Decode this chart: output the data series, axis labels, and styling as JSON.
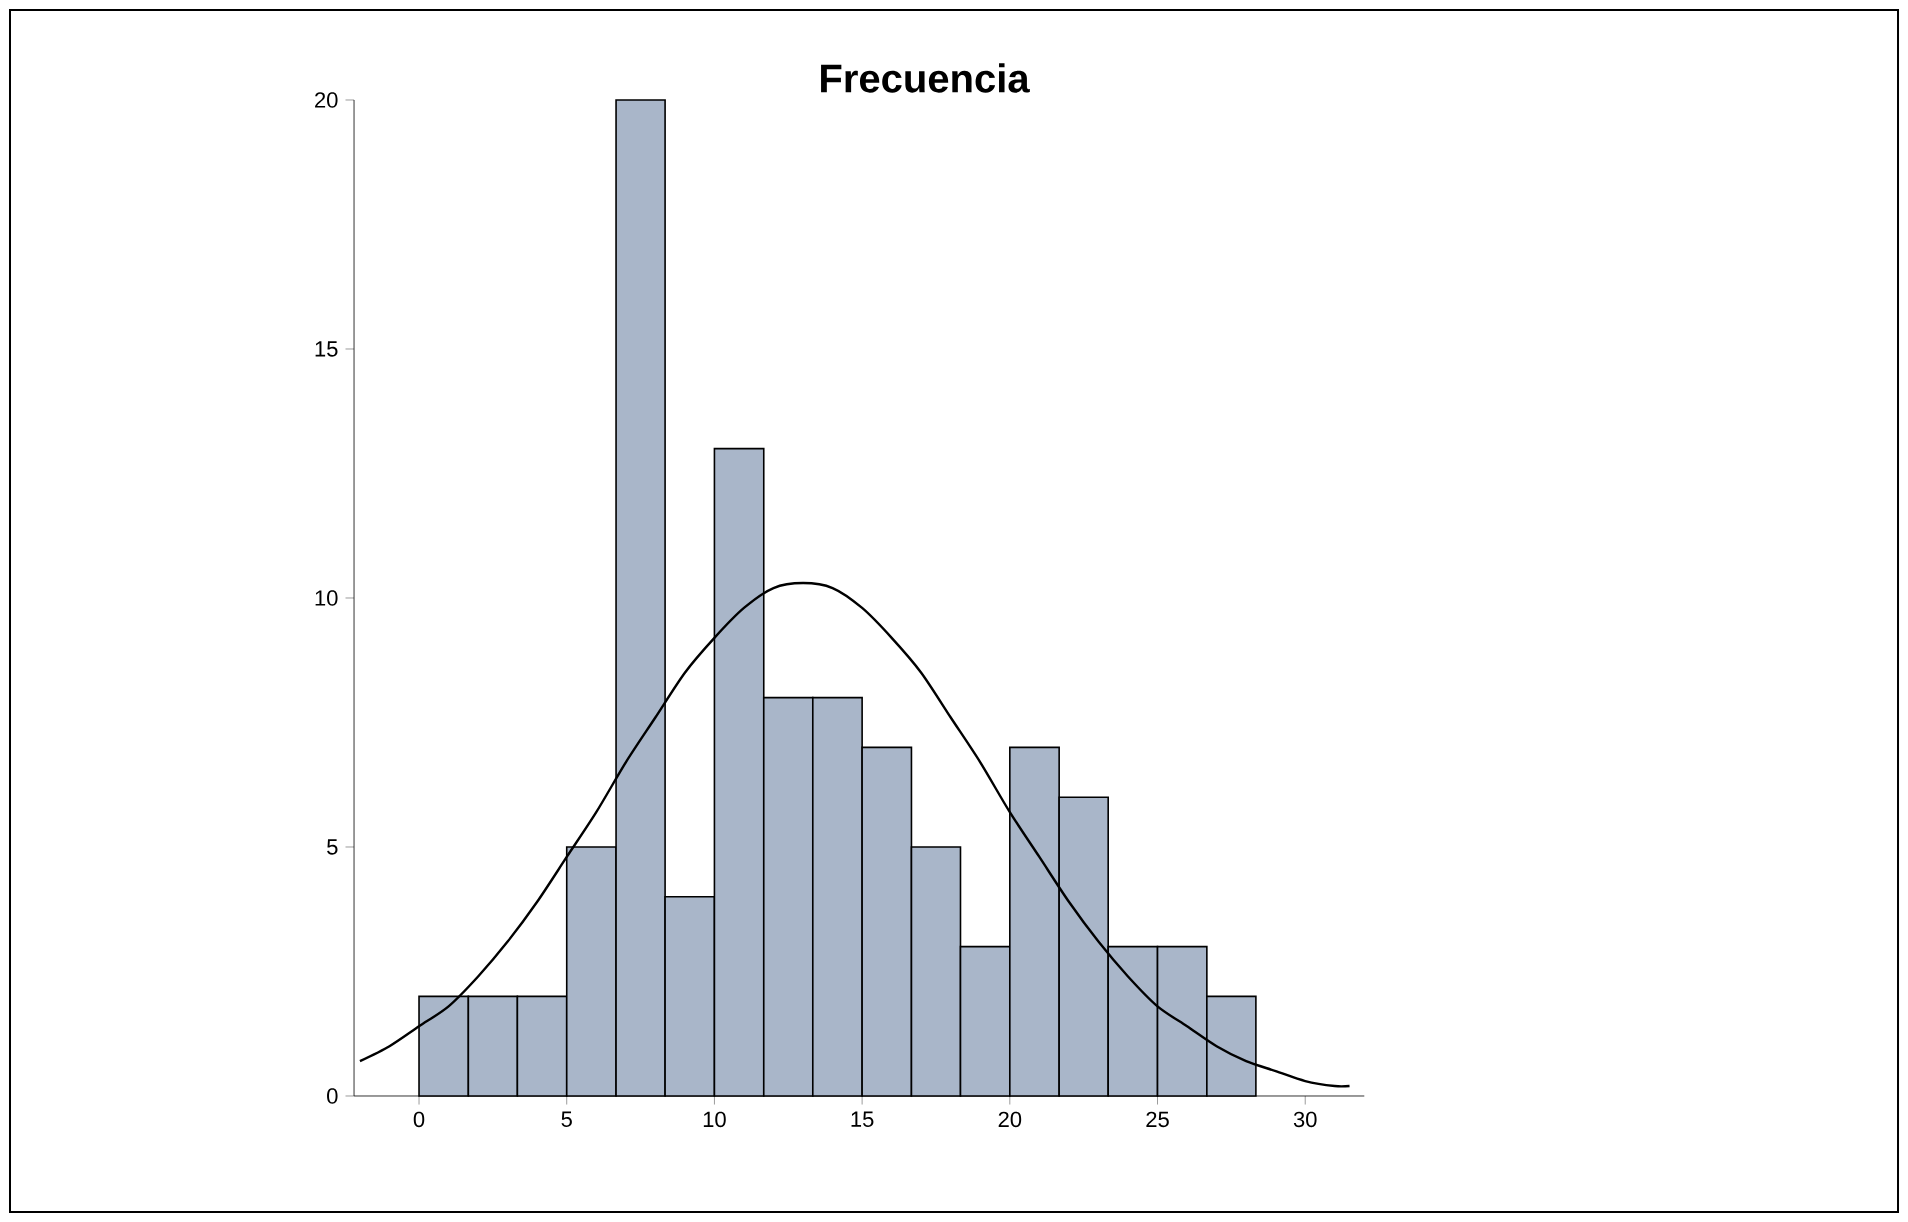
{
  "chart_data": {
    "type": "histogram",
    "title": "Frecuencia",
    "bins": [
      0,
      1.67,
      3.33,
      5,
      6.67,
      8.33,
      10,
      11.67,
      13.33,
      15,
      16.67,
      18.33,
      20,
      21.67,
      23.33,
      25,
      26.67,
      28.33
    ],
    "values": [
      2,
      2,
      2,
      5,
      20,
      4,
      13,
      8,
      8,
      7,
      5,
      3,
      7,
      6,
      3,
      3,
      2
    ],
    "color": "#a9b6c9",
    "series": [
      {
        "type": "line",
        "color": "#000000",
        "x": [
          -2,
          -1,
          0,
          1,
          2,
          3,
          4,
          5,
          6,
          7,
          8,
          9,
          10,
          11,
          12,
          13,
          14,
          15,
          16,
          17,
          18,
          19,
          20,
          21,
          22,
          23,
          24,
          25,
          26,
          27,
          28,
          29,
          30,
          31,
          31.5
        ],
        "values": [
          0.7,
          1.0,
          1.4,
          1.8,
          2.4,
          3.1,
          3.9,
          4.8,
          5.7,
          6.7,
          7.6,
          8.5,
          9.2,
          9.8,
          10.2,
          10.3,
          10.2,
          9.8,
          9.2,
          8.5,
          7.6,
          6.7,
          5.7,
          4.8,
          3.9,
          3.1,
          2.4,
          1.8,
          1.4,
          1.0,
          0.7,
          0.5,
          0.3,
          0.2,
          0.2
        ]
      }
    ],
    "xlim": [
      -2.2,
      32
    ],
    "ylim": [
      0,
      20
    ],
    "xticks": [
      0,
      5,
      10,
      15,
      20,
      25,
      30
    ],
    "yticks": [
      0,
      5,
      10,
      15,
      20
    ]
  }
}
